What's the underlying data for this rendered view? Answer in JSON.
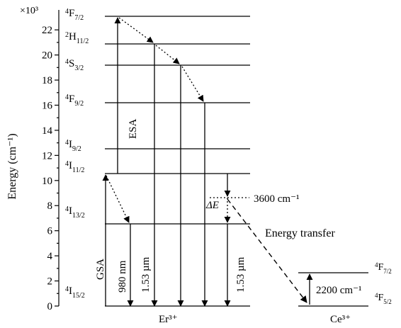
{
  "axis": {
    "label": "Energy (cm⁻¹)",
    "multiplier": "×10³",
    "ticks": [
      "0",
      "2",
      "4",
      "6",
      "8",
      "10",
      "12",
      "14",
      "16",
      "18",
      "20",
      "22"
    ]
  },
  "er_levels": [
    {
      "id": "4F7/2",
      "pre": "4",
      "base": "F",
      "sub": "7/2"
    },
    {
      "id": "2H11/2",
      "pre": "2",
      "base": "H",
      "sub": "11/2"
    },
    {
      "id": "4S3/2",
      "pre": "4",
      "base": "S",
      "sub": "3/2"
    },
    {
      "id": "4F9/2",
      "pre": "4",
      "base": "F",
      "sub": "9/2"
    },
    {
      "id": "4I9/2",
      "pre": "4",
      "base": "I",
      "sub": "9/2"
    },
    {
      "id": "4I11/2",
      "pre": "4",
      "base": "I",
      "sub": "11/2"
    },
    {
      "id": "4I13/2",
      "pre": "4",
      "base": "I",
      "sub": "13/2"
    },
    {
      "id": "4I15/2",
      "pre": "4",
      "base": "I",
      "sub": "15/2"
    }
  ],
  "ce_levels": [
    {
      "id": "4F7/2",
      "pre": "4",
      "base": "F",
      "sub": "7/2"
    },
    {
      "id": "4F5/2",
      "pre": "4",
      "base": "F",
      "sub": "5/2"
    }
  ],
  "labels": {
    "esa": "ESA",
    "gsa": "GSA",
    "pump": "980 nm",
    "emission1": "1.53 µm",
    "emission2": "1.53 µm",
    "delta_e": "ΔE",
    "mismatch": "3600 cm⁻¹",
    "energy_transfer": "Energy transfer",
    "ce_gap": "2200 cm⁻¹",
    "er_ion": "Er³⁺",
    "ce_ion": "Ce³⁺"
  }
}
